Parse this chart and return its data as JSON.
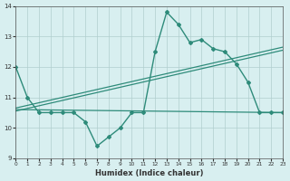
{
  "xlabel": "Humidex (Indice chaleur)",
  "xlim": [
    0,
    23
  ],
  "ylim": [
    9,
    14
  ],
  "yticks": [
    9,
    10,
    11,
    12,
    13,
    14
  ],
  "xticks": [
    0,
    1,
    2,
    3,
    4,
    5,
    6,
    7,
    8,
    9,
    10,
    11,
    12,
    13,
    14,
    15,
    16,
    17,
    18,
    19,
    20,
    21,
    22,
    23
  ],
  "line1_x": [
    0,
    1,
    2,
    3,
    4,
    5,
    6,
    7,
    8,
    9,
    10,
    11,
    12,
    13,
    14,
    15,
    16,
    17,
    18,
    19,
    20,
    21,
    22,
    23
  ],
  "line1_y": [
    12.0,
    11.0,
    10.5,
    10.5,
    10.5,
    10.5,
    10.2,
    9.4,
    9.7,
    10.0,
    10.5,
    10.5,
    12.5,
    13.8,
    13.4,
    12.8,
    12.9,
    12.6,
    12.5,
    12.1,
    11.5,
    10.5,
    10.5,
    10.5
  ],
  "line2_x": [
    0,
    23
  ],
  "line2_y": [
    10.6,
    10.5
  ],
  "trend_x": [
    0,
    23
  ],
  "trend_y": [
    10.55,
    12.55
  ],
  "trend2_x": [
    0,
    23
  ],
  "trend2_y": [
    10.65,
    12.65
  ],
  "line_color": "#2e8b7a",
  "bg_color": "#d8eff0",
  "grid_color": "#b0cece"
}
